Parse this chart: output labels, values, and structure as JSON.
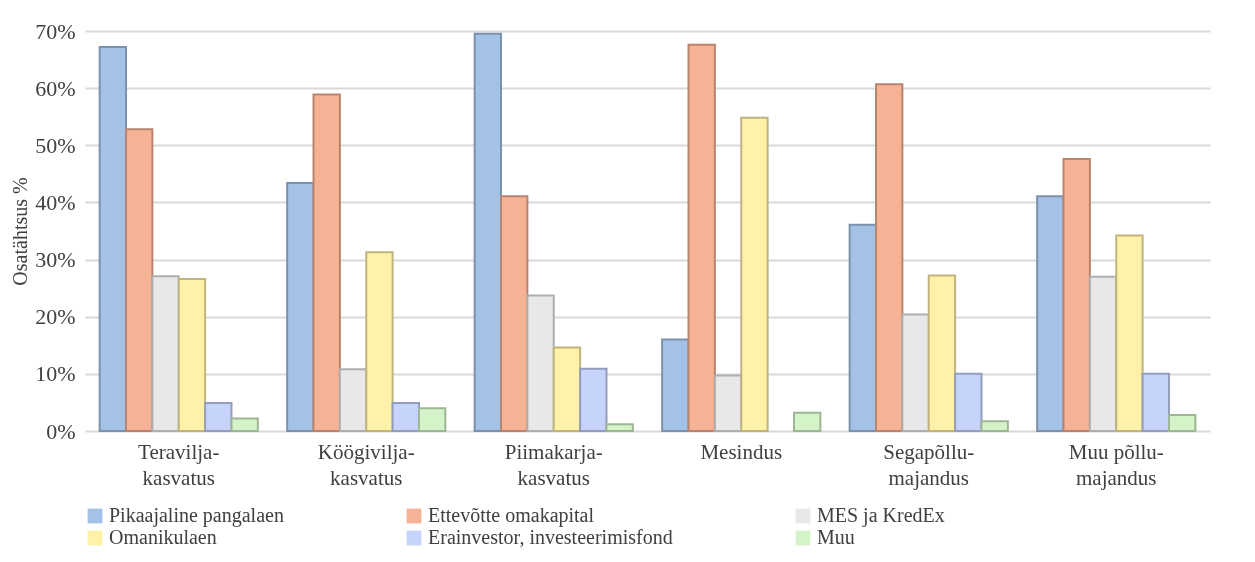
{
  "chart_data": {
    "type": "bar",
    "ylabel": "Osatähtsus %",
    "categories": [
      "Teravilja-\nkasvatus",
      "Köögivilja-\nkasvatus",
      "Piimakarja-\nkasvatus",
      "Mesindus",
      "Segapõllu-\nmajandus",
      "Muu põllu-\nmajandus"
    ],
    "series": [
      {
        "name": "Pikaajaline pangalaen",
        "color": "#a4c2e6",
        "values": [
          67.2,
          43.4,
          69.5,
          16.0,
          36.1,
          41.1
        ]
      },
      {
        "name": "Ettevõtte omakapital",
        "color": "#f5b294",
        "values": [
          52.8,
          58.9,
          41.1,
          67.6,
          60.7,
          47.6
        ]
      },
      {
        "name": "MES ja KredEx",
        "color": "#e8e8e8",
        "values": [
          27.1,
          10.8,
          23.7,
          9.7,
          20.4,
          27.0
        ]
      },
      {
        "name": "Omanikulaen",
        "color": "#fff1a8",
        "values": [
          26.6,
          31.3,
          14.6,
          54.8,
          27.2,
          34.2
        ]
      },
      {
        "name": "Erainvestor, investeerimisfond",
        "color": "#c6d3fb",
        "values": [
          4.9,
          4.9,
          10.9,
          null,
          10.0,
          10.0
        ]
      },
      {
        "name": "Muu",
        "color": "#d5f3c9",
        "values": [
          2.2,
          4.0,
          1.2,
          3.2,
          1.7,
          2.8
        ]
      }
    ],
    "ylim": [
      0,
      70
    ],
    "yticks": [
      {
        "value": 0,
        "label": "0%"
      },
      {
        "value": 10,
        "label": "10%"
      },
      {
        "value": 20,
        "label": "20%"
      },
      {
        "value": 30,
        "label": "30%"
      },
      {
        "value": 40,
        "label": "40%"
      },
      {
        "value": 50,
        "label": "50%"
      },
      {
        "value": 60,
        "label": "60%"
      },
      {
        "value": 70,
        "label": "70%"
      }
    ],
    "grid": "y",
    "legend": "bottom"
  }
}
